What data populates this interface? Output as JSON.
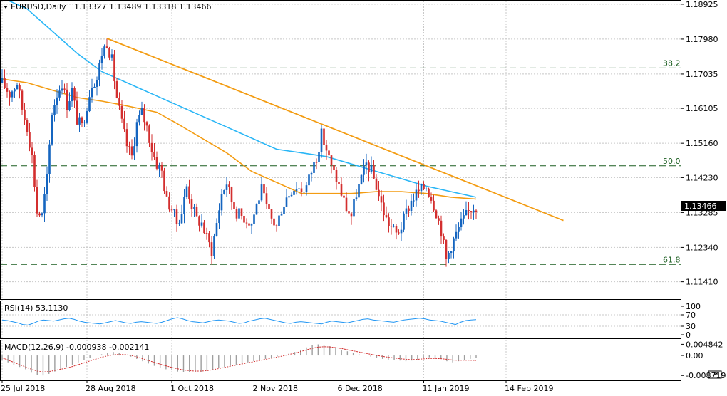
{
  "header": {
    "symbol_timeframe": "EURUSD,Daily",
    "ohlc": "1.13327 1.13489 1.13318 1.13466"
  },
  "chart_data": {
    "type": "candlestick",
    "symbol": "EURUSD",
    "timeframe": "Daily",
    "last_price": 1.13466,
    "price_axis": {
      "ticks": [
        "1.18925",
        "1.17980",
        "1.17035",
        "1.16105",
        "1.15160",
        "1.14230",
        "1.13285",
        "1.12340",
        "1.11410"
      ],
      "range": [
        1.1094,
        1.1902
      ],
      "price_label": "1.13466"
    },
    "date_axis": {
      "ticks": [
        "25 Jul 2018",
        "28 Aug 2018",
        "1 Oct 2018",
        "2 Nov 2018",
        "6 Dec 2018",
        "11 Jan 2019",
        "14 Feb 2019"
      ]
    },
    "grid": true,
    "colors": {
      "up_candle": "#1565c0",
      "down_candle": "#d32f2f",
      "sma_fast": "#f39c12",
      "sma_slow": "#29b6f6",
      "trendline": "#f39c12",
      "fib_levels": "#1b5e20",
      "rsi": "#2196f3",
      "macd_hist": "#9e9e9e",
      "macd_signal": "#d32f2f"
    },
    "price_path": [
      [
        0,
        1.168
      ],
      [
        3,
        1.165
      ],
      [
        6,
        1.168
      ],
      [
        8,
        1.161
      ],
      [
        10,
        1.156
      ],
      [
        12,
        1.148
      ],
      [
        14,
        1.133
      ],
      [
        16,
        1.132
      ],
      [
        18,
        1.142
      ],
      [
        20,
        1.16
      ],
      [
        22,
        1.165
      ],
      [
        24,
        1.168
      ],
      [
        26,
        1.162
      ],
      [
        28,
        1.166
      ],
      [
        30,
        1.158
      ],
      [
        32,
        1.156
      ],
      [
        34,
        1.162
      ],
      [
        36,
        1.168
      ],
      [
        38,
        1.169
      ],
      [
        40,
        1.176
      ],
      [
        42,
        1.179
      ],
      [
        44,
        1.174
      ],
      [
        46,
        1.164
      ],
      [
        48,
        1.157
      ],
      [
        50,
        1.151
      ],
      [
        52,
        1.148
      ],
      [
        54,
        1.157
      ],
      [
        56,
        1.16
      ],
      [
        58,
        1.156
      ],
      [
        60,
        1.15
      ],
      [
        62,
        1.146
      ],
      [
        64,
        1.144
      ],
      [
        66,
        1.136
      ],
      [
        68,
        1.134
      ],
      [
        70,
        1.13
      ],
      [
        72,
        1.133
      ],
      [
        74,
        1.14
      ],
      [
        76,
        1.135
      ],
      [
        78,
        1.131
      ],
      [
        80,
        1.13
      ],
      [
        82,
        1.126
      ],
      [
        84,
        1.1225
      ],
      [
        86,
        1.13
      ],
      [
        88,
        1.138
      ],
      [
        90,
        1.141
      ],
      [
        92,
        1.136
      ],
      [
        94,
        1.133
      ],
      [
        96,
        1.132
      ],
      [
        98,
        1.131
      ],
      [
        100,
        1.13
      ],
      [
        102,
        1.135
      ],
      [
        104,
        1.139
      ],
      [
        106,
        1.134
      ],
      [
        108,
        1.131
      ],
      [
        110,
        1.129
      ],
      [
        112,
        1.134
      ],
      [
        114,
        1.137
      ],
      [
        116,
        1.139
      ],
      [
        118,
        1.14
      ],
      [
        120,
        1.139
      ],
      [
        122,
        1.14
      ],
      [
        124,
        1.144
      ],
      [
        126,
        1.148
      ],
      [
        128,
        1.154
      ],
      [
        130,
        1.15
      ],
      [
        132,
        1.145
      ],
      [
        134,
        1.142
      ],
      [
        136,
        1.138
      ],
      [
        138,
        1.134
      ],
      [
        140,
        1.132
      ],
      [
        142,
        1.138
      ],
      [
        144,
        1.142
      ],
      [
        146,
        1.146
      ],
      [
        148,
        1.144
      ],
      [
        150,
        1.14
      ],
      [
        152,
        1.135
      ],
      [
        154,
        1.131
      ],
      [
        156,
        1.129
      ],
      [
        158,
        1.127
      ],
      [
        160,
        1.129
      ],
      [
        162,
        1.133
      ],
      [
        164,
        1.136
      ],
      [
        166,
        1.138
      ],
      [
        168,
        1.139
      ],
      [
        170,
        1.14
      ],
      [
        172,
        1.137
      ],
      [
        174,
        1.133
      ],
      [
        176,
        1.128
      ],
      [
        178,
        1.12
      ],
      [
        180,
        1.124
      ],
      [
        182,
        1.127
      ],
      [
        184,
        1.13
      ],
      [
        186,
        1.132
      ],
      [
        188,
        1.134
      ],
      [
        190,
        1.13466
      ]
    ],
    "overlays": [
      {
        "id": "sma_fast",
        "color": "#f39c12",
        "points": [
          [
            0,
            1.169
          ],
          [
            10,
            1.168
          ],
          [
            20,
            1.166
          ],
          [
            30,
            1.164
          ],
          [
            40,
            1.163
          ],
          [
            48,
            1.162
          ],
          [
            55,
            1.161
          ],
          [
            62,
            1.16
          ],
          [
            70,
            1.157
          ],
          [
            80,
            1.153
          ],
          [
            90,
            1.149
          ],
          [
            100,
            1.144
          ],
          [
            110,
            1.141
          ],
          [
            120,
            1.138
          ],
          [
            130,
            1.138
          ],
          [
            140,
            1.138
          ],
          [
            150,
            1.1385
          ],
          [
            160,
            1.1385
          ],
          [
            170,
            1.138
          ],
          [
            180,
            1.137
          ],
          [
            190,
            1.1365
          ]
        ]
      },
      {
        "id": "sma_slow",
        "color": "#29b6f6",
        "points": [
          [
            0,
            1.191
          ],
          [
            10,
            1.188
          ],
          [
            20,
            1.182
          ],
          [
            30,
            1.176
          ],
          [
            40,
            1.171
          ],
          [
            50,
            1.168
          ],
          [
            60,
            1.165
          ],
          [
            70,
            1.162
          ],
          [
            80,
            1.159
          ],
          [
            90,
            1.156
          ],
          [
            100,
            1.153
          ],
          [
            110,
            1.15
          ],
          [
            120,
            1.149
          ],
          [
            130,
            1.148
          ],
          [
            140,
            1.146
          ],
          [
            150,
            1.144
          ],
          [
            160,
            1.142
          ],
          [
            170,
            1.14
          ],
          [
            180,
            1.1385
          ],
          [
            190,
            1.137
          ]
        ]
      }
    ],
    "trendline": {
      "from": [
        42,
        1.18
      ],
      "to": [
        225,
        1.1307
      ]
    },
    "fib_levels": [
      {
        "label": "38.2",
        "value": 1.172
      },
      {
        "label": "50.0",
        "value": 1.1455
      },
      {
        "label": "61.8",
        "value": 1.1188
      }
    ],
    "rsi": {
      "label": "RSI(14) 53.1130",
      "axis_ticks": [
        "100",
        "70",
        "30",
        "0"
      ],
      "levels": [
        70,
        30
      ],
      "values": [
        52,
        50,
        46,
        42,
        36,
        34,
        40,
        48,
        52,
        50,
        48,
        52,
        56,
        58,
        54,
        48,
        44,
        42,
        40,
        38,
        42,
        46,
        50,
        46,
        42,
        40,
        44,
        46,
        44,
        42,
        40,
        44,
        50,
        56,
        60,
        56,
        50,
        46,
        44,
        42,
        46,
        50,
        52,
        50,
        48,
        44,
        40,
        42,
        48,
        52,
        56,
        58,
        54,
        50,
        46,
        42,
        40,
        44,
        46,
        44,
        42,
        40,
        38,
        44,
        48,
        46,
        44,
        42,
        46,
        50,
        54,
        56,
        52,
        50,
        48,
        46,
        44,
        48,
        52,
        54,
        56,
        58,
        56,
        52,
        50,
        48,
        44,
        40,
        36,
        44,
        50,
        52,
        53
      ]
    },
    "macd": {
      "label": "MACD(12,26,9) -0.000938 -0.002141",
      "axis_ticks": [
        "0.004842",
        "0.00",
        "-0.008719"
      ],
      "range": [
        -0.0105,
        0.0062
      ],
      "histogram": [
        -0.002,
        -0.003,
        -0.004,
        -0.005,
        -0.006,
        -0.0075,
        -0.0085,
        -0.0087,
        -0.008,
        -0.007,
        -0.006,
        -0.005,
        -0.004,
        -0.003,
        -0.002,
        -0.001,
        0.0,
        0.0005,
        0.001,
        0.0015,
        0.001,
        0.0005,
        -0.0005,
        -0.0015,
        -0.0025,
        -0.0035,
        -0.0045,
        -0.0055,
        -0.006,
        -0.0065,
        -0.007,
        -0.0072,
        -0.0074,
        -0.0074,
        -0.0072,
        -0.0068,
        -0.0062,
        -0.0055,
        -0.005,
        -0.0045,
        -0.004,
        -0.0035,
        -0.003,
        -0.0025,
        -0.002,
        -0.0015,
        -0.001,
        -0.0005,
        0.0,
        0.0008,
        0.0015,
        0.0025,
        0.0035,
        0.0045,
        0.0048,
        0.0045,
        0.004,
        0.0032,
        0.0025,
        0.0018,
        0.001,
        0.0005,
        0.0,
        -0.0005,
        -0.001,
        -0.0015,
        -0.0018,
        -0.002,
        -0.0022,
        -0.0025,
        -0.0022,
        -0.0018,
        -0.0012,
        -0.0008,
        -0.001,
        -0.0015,
        -0.0025,
        -0.003,
        -0.0025,
        -0.002,
        -0.0015,
        -0.001
      ],
      "signal": [
        -0.001,
        -0.002,
        -0.003,
        -0.004,
        -0.005,
        -0.006,
        -0.0068,
        -0.0072,
        -0.007,
        -0.0065,
        -0.006,
        -0.0055,
        -0.0048,
        -0.004,
        -0.0032,
        -0.0024,
        -0.0016,
        -0.0008,
        -0.0002,
        0.0003,
        0.0005,
        0.0004,
        0.0,
        -0.0006,
        -0.0014,
        -0.0022,
        -0.003,
        -0.0038,
        -0.0045,
        -0.0052,
        -0.0058,
        -0.0063,
        -0.0066,
        -0.0068,
        -0.0068,
        -0.0066,
        -0.0062,
        -0.0057,
        -0.0052,
        -0.0047,
        -0.0042,
        -0.0037,
        -0.0032,
        -0.0027,
        -0.0022,
        -0.0017,
        -0.0012,
        -0.0007,
        -0.0002,
        0.0004,
        0.001,
        0.0017,
        0.0024,
        0.0031,
        0.0036,
        0.0038,
        0.0037,
        0.0034,
        0.003,
        0.0025,
        0.002,
        0.0015,
        0.001,
        0.0005,
        0.0,
        -0.0004,
        -0.0008,
        -0.0011,
        -0.0014,
        -0.0017,
        -0.0018,
        -0.0017,
        -0.0015,
        -0.0013,
        -0.0013,
        -0.0014,
        -0.0017,
        -0.002,
        -0.0021,
        -0.0021,
        -0.0021,
        -0.00214
      ]
    }
  }
}
